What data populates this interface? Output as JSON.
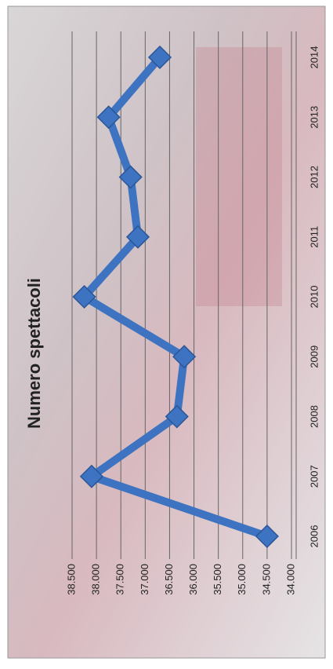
{
  "chart_data": {
    "type": "line",
    "title": "Numero spettacoli",
    "categories": [
      "2006",
      "2007",
      "2008",
      "2009",
      "2010",
      "2011",
      "2012",
      "2013",
      "2014"
    ],
    "values": [
      34500,
      38100,
      36350,
      36200,
      38250,
      37150,
      37300,
      37750,
      36700
    ],
    "color": "#3d73c0",
    "ylim": [
      34000,
      38500
    ],
    "yticks": [
      {
        "value": 34000,
        "label": "34.000"
      },
      {
        "value": 34500,
        "label": "34.500"
      },
      {
        "value": 35000,
        "label": "35.000"
      },
      {
        "value": 35500,
        "label": "35.500"
      },
      {
        "value": 36000,
        "label": "36.000"
      },
      {
        "value": 36500,
        "label": "36.500"
      },
      {
        "value": 37000,
        "label": "37.000"
      },
      {
        "value": 37500,
        "label": "37.500"
      },
      {
        "value": 38000,
        "label": "38.000"
      },
      {
        "value": 38500,
        "label": "38.500"
      }
    ],
    "grid": true
  }
}
